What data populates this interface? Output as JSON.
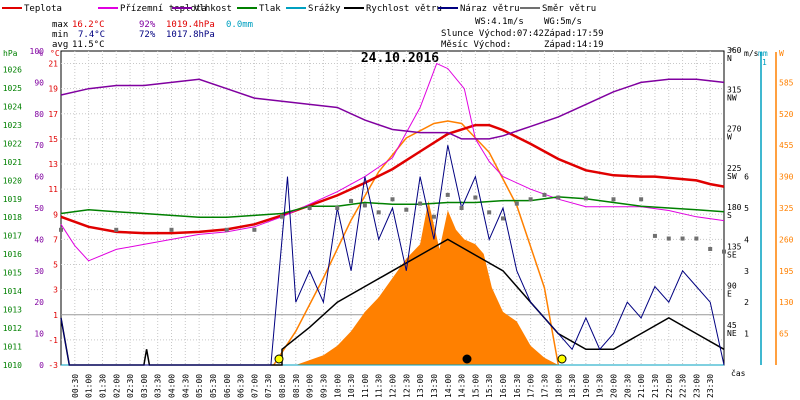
{
  "legend": [
    {
      "label": "Teplota",
      "color": "#e00000"
    },
    {
      "label": "Přízemní teplota",
      "color": "#e000e0"
    },
    {
      "label": "Vlhkost",
      "color": "#8000a0"
    },
    {
      "label": "Tlak",
      "color": "#008000"
    },
    {
      "label": "Srážky",
      "color": "#00a0c0"
    },
    {
      "label": "Rychlost větru",
      "color": "#000000"
    },
    {
      "label": "Náraz větru",
      "color": "#000080"
    },
    {
      "label": "Směr větru",
      "color": "#707070"
    }
  ],
  "stats": {
    "max": {
      "label": "max",
      "temp": "16.2°C",
      "hum": "92%",
      "press": "1019.4hPa",
      "rain": "0.0mm"
    },
    "min": {
      "label": "min",
      "temp": "7.4°C",
      "hum": "72%",
      "press": "1017.8hPa"
    },
    "avg": {
      "label": "avg",
      "temp": "11.5°C"
    }
  },
  "wind_info": {
    "ws": "WS:4.1m/s",
    "wg": "WG:5m/s"
  },
  "sun_info": {
    "sunrise": "Slunce Východ:07:42",
    "sunset": "Západ:17:59"
  },
  "moon_info": {
    "rise": "Měsíc  Východ:",
    "set": "Západ:14:19"
  },
  "date_title": "24.10.2016",
  "colors": {
    "temp": "#e00000",
    "ground": "#e000e0",
    "hum": "#8000a0",
    "press": "#008000",
    "rain": "#00a0c0",
    "wind": "#000000",
    "gust": "#000080",
    "dir": "#707070",
    "solar": "#ff8000",
    "grid": "#c8c8c8"
  },
  "chart_data": {
    "type": "line",
    "title": "24.10.2016",
    "x_unit": "čas",
    "x_ticks": [
      "00:30",
      "01:00",
      "01:30",
      "02:00",
      "02:30",
      "03:00",
      "03:30",
      "04:00",
      "04:30",
      "05:00",
      "05:30",
      "06:00",
      "06:30",
      "07:00",
      "07:30",
      "08:00",
      "08:30",
      "09:00",
      "09:30",
      "10:00",
      "10:30",
      "11:00",
      "11:30",
      "12:00",
      "12:30",
      "13:00",
      "13:30",
      "14:00",
      "14:30",
      "15:00",
      "15:30",
      "16:00",
      "16:30",
      "17:00",
      "17:30",
      "18:00",
      "18:30",
      "19:00",
      "19:30",
      "20:00",
      "20:30",
      "21:00",
      "21:30",
      "22:00",
      "22:30",
      "23:00",
      "23:30"
    ],
    "axes": {
      "hpa": {
        "label": "hPa",
        "range": [
          1010,
          1027
        ],
        "ticks": [
          1010,
          1011,
          1012,
          1013,
          1014,
          1015,
          1016,
          1017,
          1018,
          1019,
          1020,
          1021,
          1022,
          1023,
          1024,
          1025,
          1026
        ]
      },
      "pct": {
        "label": "%",
        "range": [
          0,
          100
        ],
        "ticks": [
          0,
          10,
          20,
          30,
          40,
          50,
          60,
          70,
          80,
          90,
          100
        ]
      },
      "temp": {
        "label": "°C",
        "range": [
          -3,
          22
        ],
        "ticks": [
          -3,
          -1,
          1,
          3,
          5,
          7,
          9,
          11,
          13,
          15,
          17,
          19,
          21
        ]
      },
      "dir": {
        "label": "°",
        "range": [
          0,
          360
        ],
        "ticks": [
          {
            "v": 360,
            "l": "360",
            "d": "N"
          },
          {
            "v": 315,
            "l": "315",
            "d": "NW"
          },
          {
            "v": 270,
            "l": "270",
            "d": "W"
          },
          {
            "v": 225,
            "l": "225",
            "d": "SW"
          },
          {
            "v": 180,
            "l": "180",
            "d": "S"
          },
          {
            "v": 135,
            "l": "135",
            "d": "SE"
          },
          {
            "v": 90,
            "l": "90",
            "d": "E"
          },
          {
            "v": 45,
            "l": "45",
            "d": "NE"
          }
        ]
      },
      "ms": {
        "label": "m/s",
        "range": [
          0,
          10
        ],
        "ticks": [
          1,
          2,
          3,
          4,
          5,
          6
        ]
      },
      "mm": {
        "label": "mm",
        "ticks": [
          1
        ]
      },
      "wm2": {
        "label": "W",
        "range": [
          0,
          650
        ],
        "ticks": [
          65,
          130,
          195,
          260,
          325,
          390,
          455,
          520,
          585
        ]
      }
    },
    "series": [
      {
        "name": "Teplota",
        "axis": "temp",
        "points": [
          [
            0,
            8.8
          ],
          [
            0.5,
            8.4
          ],
          [
            1,
            8.0
          ],
          [
            2,
            7.6
          ],
          [
            3,
            7.5
          ],
          [
            4,
            7.5
          ],
          [
            5,
            7.6
          ],
          [
            6,
            7.8
          ],
          [
            7,
            8.2
          ],
          [
            8,
            8.9
          ],
          [
            9,
            9.7
          ],
          [
            10,
            10.5
          ],
          [
            11,
            11.5
          ],
          [
            12,
            12.6
          ],
          [
            13,
            14.0
          ],
          [
            14,
            15.4
          ],
          [
            15,
            16.1
          ],
          [
            15.5,
            16.1
          ],
          [
            16,
            15.7
          ],
          [
            17,
            14.6
          ],
          [
            18,
            13.4
          ],
          [
            19,
            12.5
          ],
          [
            20,
            12.1
          ],
          [
            21,
            12.0
          ],
          [
            21.5,
            12.0
          ],
          [
            22,
            11.9
          ],
          [
            23,
            11.7
          ],
          [
            23.5,
            11.4
          ],
          [
            24,
            11.2
          ]
        ]
      },
      {
        "name": "Přízemní teplota",
        "axis": "temp",
        "points": [
          [
            0,
            8.2
          ],
          [
            0.5,
            6.5
          ],
          [
            1,
            5.3
          ],
          [
            2,
            6.2
          ],
          [
            3,
            6.6
          ],
          [
            4,
            7.0
          ],
          [
            5,
            7.4
          ],
          [
            6,
            7.6
          ],
          [
            7,
            8.0
          ],
          [
            8,
            8.8
          ],
          [
            9,
            9.8
          ],
          [
            10,
            10.8
          ],
          [
            11,
            12.0
          ],
          [
            12,
            13.5
          ],
          [
            13,
            17.5
          ],
          [
            13.6,
            21.0
          ],
          [
            14,
            20.6
          ],
          [
            14.6,
            19.0
          ],
          [
            15,
            15.0
          ],
          [
            15.5,
            13.2
          ],
          [
            16,
            12.0
          ],
          [
            17,
            11.0
          ],
          [
            18,
            10.2
          ],
          [
            19,
            9.6
          ],
          [
            20,
            9.6
          ],
          [
            21,
            9.6
          ],
          [
            22,
            9.3
          ],
          [
            23,
            8.8
          ],
          [
            24,
            8.5
          ]
        ]
      },
      {
        "name": "Vlhkost",
        "axis": "pct",
        "points": [
          [
            0,
            86
          ],
          [
            1,
            88
          ],
          [
            2,
            89
          ],
          [
            3,
            89
          ],
          [
            4,
            90
          ],
          [
            5,
            91
          ],
          [
            6,
            88
          ],
          [
            7,
            85
          ],
          [
            8,
            84
          ],
          [
            9,
            83
          ],
          [
            10,
            82
          ],
          [
            11,
            78
          ],
          [
            12,
            75
          ],
          [
            13,
            74
          ],
          [
            14,
            74
          ],
          [
            14.5,
            72
          ],
          [
            15,
            72
          ],
          [
            15.5,
            72
          ],
          [
            16,
            73
          ],
          [
            17,
            76
          ],
          [
            18,
            79
          ],
          [
            19,
            83
          ],
          [
            20,
            87
          ],
          [
            21,
            90
          ],
          [
            22,
            91
          ],
          [
            23,
            91
          ],
          [
            24,
            90
          ]
        ]
      },
      {
        "name": "Tlak",
        "axis": "hpa",
        "points": [
          [
            0,
            1018.2
          ],
          [
            1,
            1018.4
          ],
          [
            2,
            1018.3
          ],
          [
            3,
            1018.2
          ],
          [
            4,
            1018.1
          ],
          [
            5,
            1018.0
          ],
          [
            6,
            1018.0
          ],
          [
            7,
            1018.1
          ],
          [
            8,
            1018.2
          ],
          [
            9,
            1018.6
          ],
          [
            10,
            1018.6
          ],
          [
            11,
            1018.8
          ],
          [
            12,
            1018.7
          ],
          [
            13,
            1018.7
          ],
          [
            14,
            1018.8
          ],
          [
            15,
            1018.8
          ],
          [
            16,
            1018.9
          ],
          [
            17,
            1018.9
          ],
          [
            18,
            1019.1
          ],
          [
            19,
            1019.0
          ],
          [
            20,
            1018.8
          ],
          [
            21,
            1018.6
          ],
          [
            22,
            1018.5
          ],
          [
            23,
            1018.4
          ],
          [
            24,
            1018.3
          ]
        ]
      },
      {
        "name": "Srážky",
        "axis": "mm",
        "points": [
          [
            0,
            0
          ],
          [
            24,
            0
          ]
        ]
      },
      {
        "name": "Rychlost větru",
        "axis": "ms",
        "points": [
          [
            0,
            1.5
          ],
          [
            0.3,
            0
          ],
          [
            3,
            0
          ],
          [
            3.1,
            0.5
          ],
          [
            3.2,
            0
          ],
          [
            8,
            0
          ],
          [
            8,
            0.5
          ],
          [
            9,
            1.2
          ],
          [
            10,
            2.0
          ],
          [
            11,
            2.5
          ],
          [
            12,
            3.0
          ],
          [
            13,
            3.5
          ],
          [
            14,
            4.0
          ],
          [
            15,
            3.5
          ],
          [
            16,
            3.0
          ],
          [
            17,
            2.0
          ],
          [
            18,
            1.0
          ],
          [
            19,
            0.5
          ],
          [
            20,
            0.5
          ],
          [
            21,
            1.0
          ],
          [
            22,
            1.5
          ],
          [
            23,
            1.0
          ],
          [
            24,
            0.5
          ]
        ]
      },
      {
        "name": "Náraz větru",
        "axis": "ms",
        "points": [
          [
            0,
            1.5
          ],
          [
            0.3,
            0
          ],
          [
            7.6,
            0
          ],
          [
            8,
            4
          ],
          [
            8.2,
            6
          ],
          [
            8.5,
            2
          ],
          [
            9,
            3
          ],
          [
            9.5,
            2
          ],
          [
            10,
            5
          ],
          [
            10.5,
            3
          ],
          [
            11,
            6
          ],
          [
            11.5,
            4
          ],
          [
            12,
            5
          ],
          [
            12.5,
            3
          ],
          [
            13,
            6
          ],
          [
            13.5,
            4
          ],
          [
            14,
            7
          ],
          [
            14.5,
            5
          ],
          [
            15,
            6
          ],
          [
            15.5,
            4
          ],
          [
            16,
            5
          ],
          [
            16.5,
            3
          ],
          [
            17,
            2
          ],
          [
            17.5,
            1.5
          ],
          [
            18,
            1
          ],
          [
            18.5,
            0.5
          ],
          [
            19,
            1.5
          ],
          [
            19.5,
            0.5
          ],
          [
            20,
            1
          ],
          [
            20.5,
            2
          ],
          [
            21,
            1.5
          ],
          [
            21.5,
            2.5
          ],
          [
            22,
            2
          ],
          [
            22.5,
            3
          ],
          [
            23,
            2.5
          ],
          [
            23.5,
            2
          ],
          [
            24,
            0
          ]
        ]
      },
      {
        "name": "Směr větru",
        "axis": "dir",
        "points": [
          [
            0,
            155
          ],
          [
            2,
            155
          ],
          [
            4,
            155
          ],
          [
            6,
            155
          ],
          [
            7,
            155
          ],
          [
            8,
            170
          ],
          [
            9,
            180
          ],
          [
            10,
            180
          ],
          [
            10.5,
            188
          ],
          [
            11,
            183
          ],
          [
            11.5,
            175
          ],
          [
            12,
            190
          ],
          [
            12.5,
            178
          ],
          [
            13,
            185
          ],
          [
            13.5,
            170
          ],
          [
            14,
            195
          ],
          [
            14.5,
            180
          ],
          [
            15,
            192
          ],
          [
            15.5,
            175
          ],
          [
            16,
            168
          ],
          [
            16.5,
            185
          ],
          [
            17,
            190
          ],
          [
            17.5,
            195
          ],
          [
            18,
            192
          ],
          [
            19,
            191
          ],
          [
            20,
            190
          ],
          [
            21,
            190
          ],
          [
            21.5,
            148
          ],
          [
            22,
            145
          ],
          [
            22.5,
            145
          ],
          [
            23,
            145
          ],
          [
            23.5,
            133
          ],
          [
            24,
            130
          ]
        ]
      },
      {
        "name": "Solar",
        "axis": "wm2",
        "points": [
          [
            0,
            0
          ],
          [
            8.5,
            0
          ],
          [
            9.5,
            20
          ],
          [
            10,
            40
          ],
          [
            10.5,
            70
          ],
          [
            11,
            110
          ],
          [
            11.5,
            140
          ],
          [
            12,
            180
          ],
          [
            12.5,
            220
          ],
          [
            13,
            250
          ],
          [
            13.3,
            340
          ],
          [
            13.7,
            240
          ],
          [
            14,
            320
          ],
          [
            14.3,
            280
          ],
          [
            14.6,
            260
          ],
          [
            15,
            250
          ],
          [
            15.3,
            230
          ],
          [
            15.6,
            160
          ],
          [
            16,
            110
          ],
          [
            16.5,
            90
          ],
          [
            17,
            40
          ],
          [
            17.5,
            15
          ],
          [
            18,
            0
          ],
          [
            24,
            0
          ]
        ]
      },
      {
        "name": "Solar max",
        "axis": "wm2",
        "points": [
          [
            7.7,
            0
          ],
          [
            8.5,
            70
          ],
          [
            9.5,
            180
          ],
          [
            10.5,
            300
          ],
          [
            11.5,
            400
          ],
          [
            12.5,
            470
          ],
          [
            13.5,
            500
          ],
          [
            14,
            505
          ],
          [
            14.5,
            500
          ],
          [
            15.5,
            440
          ],
          [
            16.5,
            330
          ],
          [
            17.5,
            160
          ],
          [
            18,
            0
          ]
        ]
      }
    ]
  }
}
